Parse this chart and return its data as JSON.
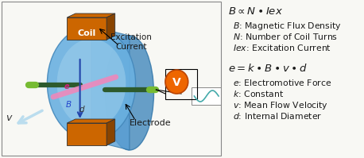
{
  "bg_color": "#f8f8f4",
  "text_color": "#1a1a1a",
  "coil_color": "#cc6600",
  "coil_dark": "#884400",
  "pipe_color": "#5599cc",
  "electrode_color": "#336633",
  "electrode_tip_color": "#88bb44",
  "voltmeter_color": "#ee6600",
  "voltmeter_text": "V",
  "coil_label": "Coil",
  "excitation_label": "Excitation\nCurrent",
  "electrode_label": "Electrode",
  "eq1_line1": "$B \\propto N \\bullet Iex$",
  "eq1_b": "$B$: Magnetic Flux Density",
  "eq1_n": "$N$: Number of Coil Turns",
  "eq1_iex": "$Iex$: Excitation Current",
  "eq2_line1": "$e = k \\bullet B \\bullet v \\bullet d$",
  "eq2_e": "$e$: Electromotive Force",
  "eq2_k": "$k$: Constant",
  "eq2_v": "$v$: Mean Flow Velocity",
  "eq2_d": "$d$: Internal Diameter",
  "fig_width": 4.58,
  "fig_height": 1.99,
  "dpi": 100
}
